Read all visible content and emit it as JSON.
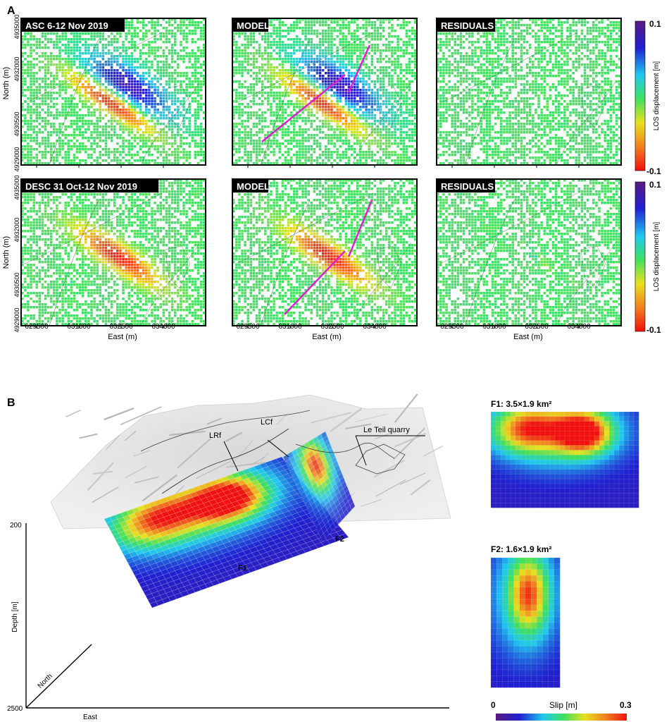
{
  "section_a": {
    "label": "A",
    "panels": [
      {
        "title": "ASC 6-12 Nov 2019",
        "kind": "data",
        "row": 0
      },
      {
        "title": "MODEL",
        "kind": "model",
        "row": 0
      },
      {
        "title": "RESIDUALS",
        "kind": "residual",
        "row": 0
      },
      {
        "title": "DESC 31 Oct-12 Nov 2019",
        "kind": "data",
        "row": 1
      },
      {
        "title": "MODEL",
        "kind": "model",
        "row": 1
      },
      {
        "title": "RESIDUALS",
        "kind": "residual",
        "row": 1
      }
    ],
    "y_axis_label": "North (m)",
    "y_ticks": [
      "4935000",
      "4932000",
      "4930500",
      "4929000"
    ],
    "x_axis_label": "East (m)",
    "x_ticks": [
      "629500",
      "631000",
      "632500",
      "634000"
    ],
    "colorbar": {
      "label": "LOS displacement [m]",
      "max": "0.1",
      "min": "-0.1"
    }
  },
  "section_b": {
    "label": "B",
    "annotations": {
      "lrf": "LRf",
      "lcf": "LCf",
      "quarry": "Le Teil quarry",
      "f1": "F1",
      "f2": "F2"
    },
    "depth_axis": {
      "label": "Depth [m]",
      "top": "200",
      "bottom": "2500"
    },
    "direction_labels": {
      "north": "North",
      "east": "East"
    },
    "f1_title": "F1: 3.5×1.9 km²",
    "f2_title": "F2: 1.6×1.9 km²",
    "slip_colorbar": {
      "label": "Slip [m]",
      "min": "0",
      "max": "0.3"
    }
  },
  "colors": {
    "fault_trace": "#e020d0",
    "panel_border": "#000000",
    "label_box": "#000000"
  }
}
